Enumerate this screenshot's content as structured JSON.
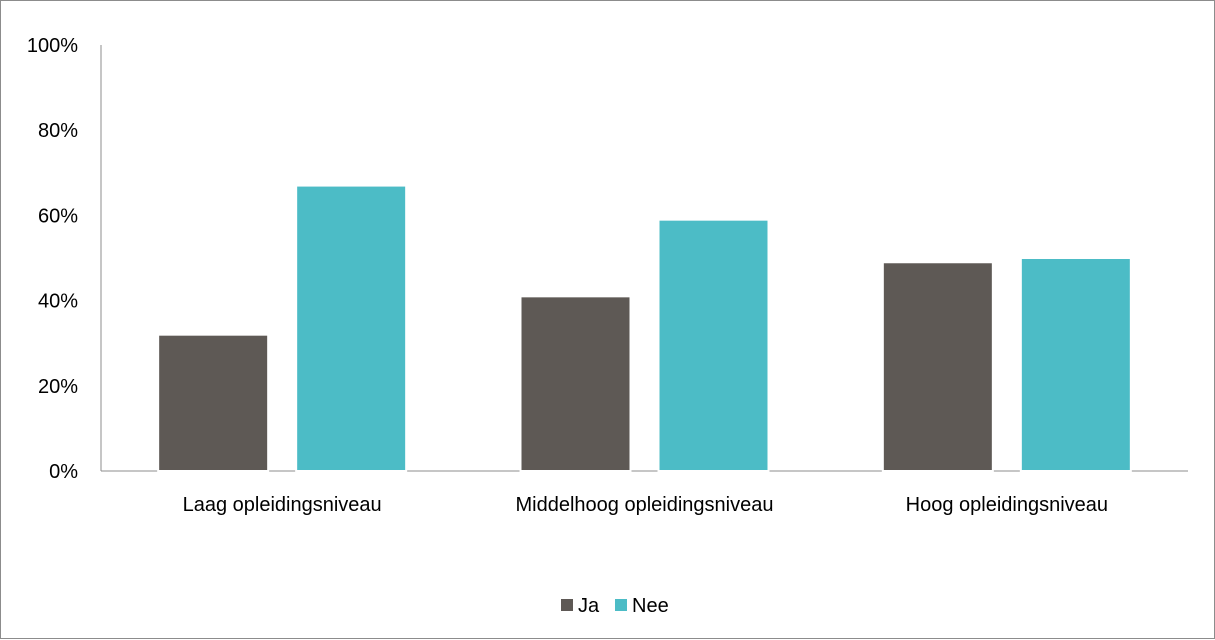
{
  "chart_data": {
    "type": "bar",
    "categories": [
      "Laag opleidingsniveau",
      "Middelhoog opleidingsniveau",
      "Hoog opleidingsniveau"
    ],
    "series": [
      {
        "name": "Ja",
        "values": [
          32,
          41,
          49
        ],
        "color": "#5e5955"
      },
      {
        "name": "Nee",
        "values": [
          67,
          59,
          50
        ],
        "color": "#4cbcc6"
      }
    ],
    "ylim": [
      0,
      100
    ],
    "yticks": [
      0,
      20,
      40,
      60,
      80,
      100
    ],
    "ytick_labels": [
      "0%",
      "20%",
      "40%",
      "60%",
      "80%",
      "100%"
    ],
    "grid": false,
    "legend_position": "bottom"
  }
}
